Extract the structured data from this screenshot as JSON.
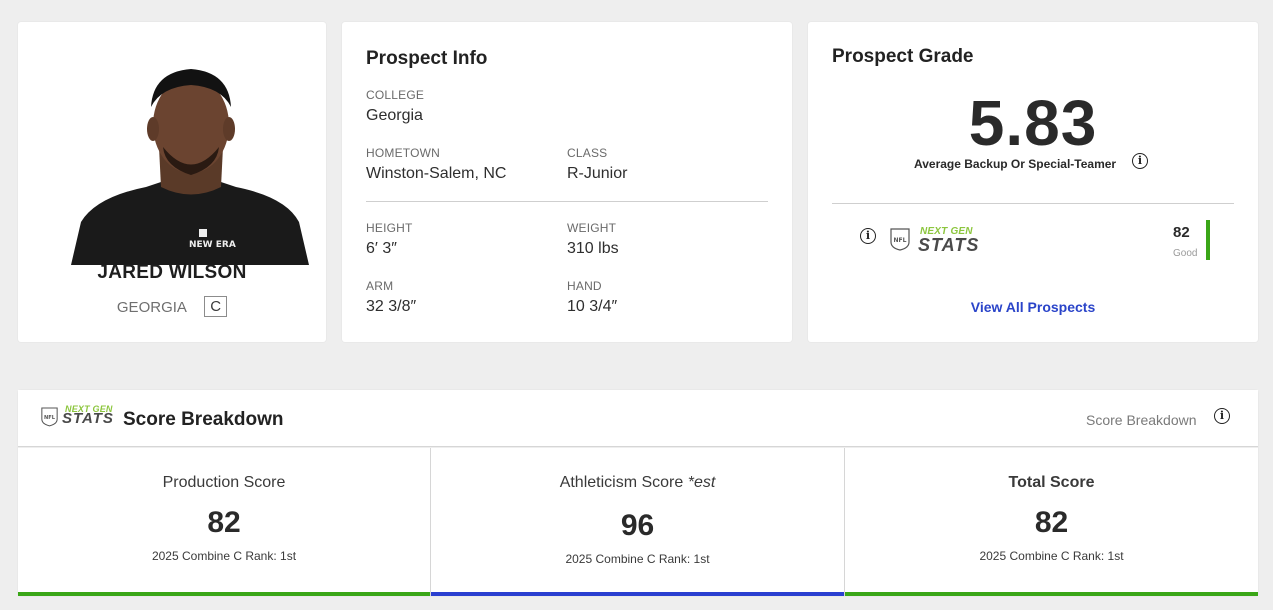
{
  "player": {
    "name": "JARED WILSON",
    "college_short": "GEORGIA",
    "position": "C"
  },
  "info": {
    "title": "Prospect Info",
    "college_label": "COLLEGE",
    "college": "Georgia",
    "hometown_label": "HOMETOWN",
    "hometown": "Winston-Salem, NC",
    "class_label": "CLASS",
    "class": "R-Junior",
    "height_label": "HEIGHT",
    "height": "6′ 3″",
    "weight_label": "WEIGHT",
    "weight": "310 lbs",
    "arm_label": "ARM",
    "arm": "32 3/8″",
    "hand_label": "HAND",
    "hand": "10 3/4″"
  },
  "grade": {
    "title": "Prospect Grade",
    "value": "5.83",
    "description": "Average Backup Or Special-Teamer",
    "ngs_score": "82",
    "ngs_rating": "Good",
    "view_all": "View All Prospects"
  },
  "ngs_logo": {
    "next_gen": "NEXT GEN",
    "stats": "STATS",
    "shield": "NFL"
  },
  "breakdown": {
    "title": "Score Breakdown",
    "right_label": "Score Breakdown",
    "panels": [
      {
        "title": "Production Score",
        "value": "82",
        "rank": "2025 Combine C Rank: 1st",
        "color": "#3aa617"
      },
      {
        "title": "Athleticism Score",
        "title_suffix": "*est",
        "value": "96",
        "rank": "2025 Combine C Rank: 1st",
        "color": "#2a3fd0"
      },
      {
        "title": "Total Score",
        "value": "82",
        "rank": "2025 Combine C Rank: 1st",
        "color": "#3aa617"
      }
    ]
  },
  "colors": {
    "accent_green": "#3aa617",
    "accent_blue": "#2a3fd0",
    "link_blue": "#2a44c9",
    "ngs_green": "#8cc63e"
  }
}
